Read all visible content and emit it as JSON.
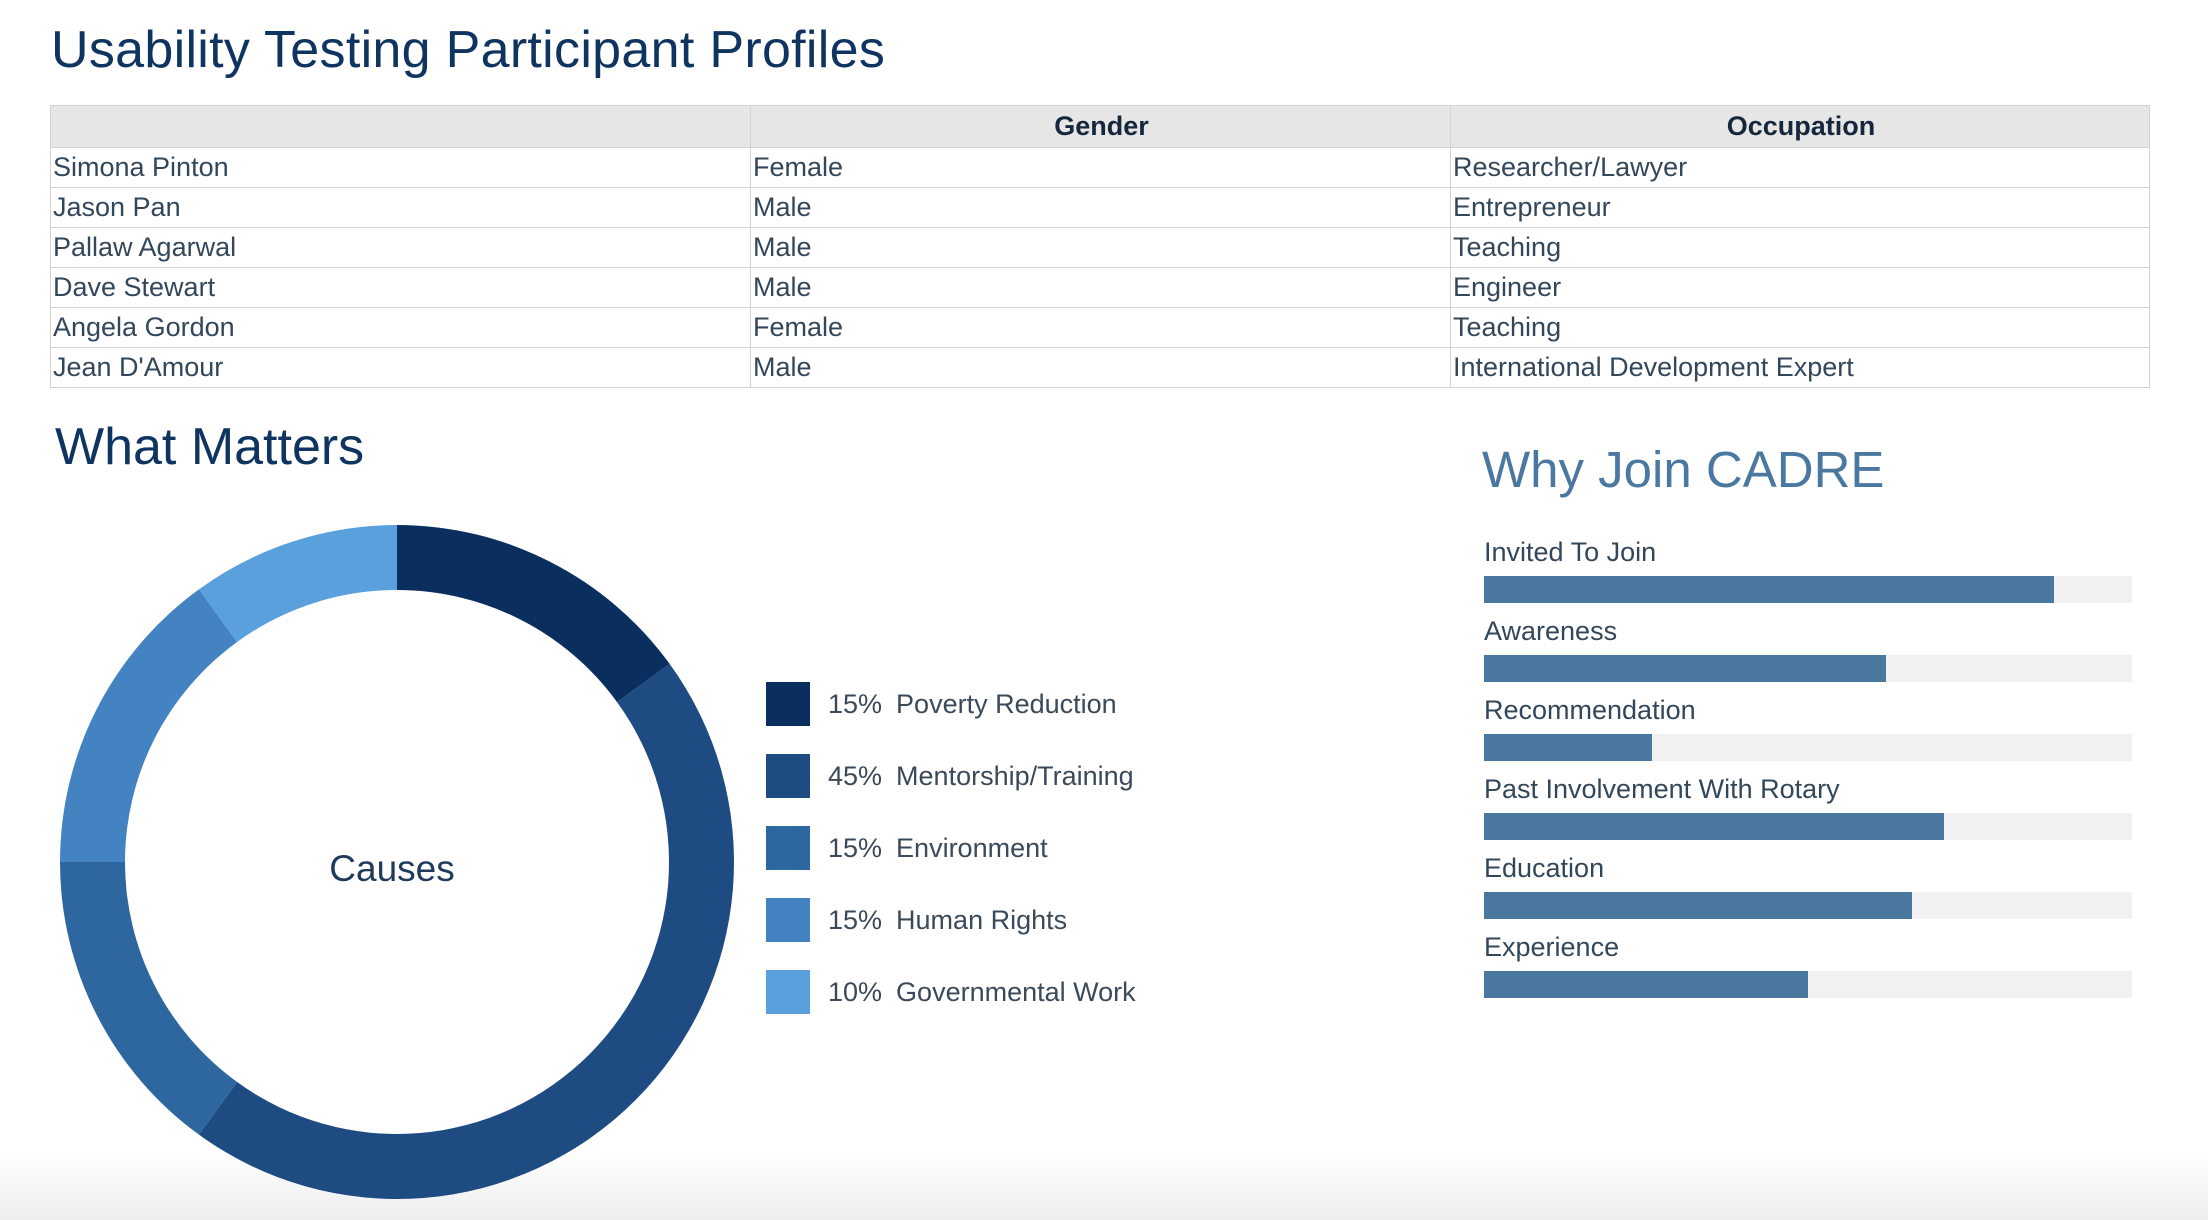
{
  "page_title": "Usability Testing Participant Profiles",
  "participants": {
    "headers": [
      "",
      "Gender",
      "Occupation"
    ],
    "rows": [
      [
        "Simona Pinton",
        "Female",
        "Researcher/Lawyer"
      ],
      [
        "Jason Pan",
        "Male",
        "Entrepreneur"
      ],
      [
        "Pallaw Agarwal",
        "Male",
        "Teaching"
      ],
      [
        "Dave Stewart",
        "Male",
        "Engineer"
      ],
      [
        "Angela Gordon",
        "Female",
        "Teaching"
      ],
      [
        "Jean D'Amour",
        "Male",
        "International Development Expert"
      ]
    ]
  },
  "chart_data": [
    {
      "type": "pie",
      "title": "What Matters",
      "center_label": "Causes",
      "slices": [
        {
          "label": "Poverty Reduction",
          "pct_text": "15%",
          "value": 15,
          "color": "#0a2f5f"
        },
        {
          "label": "Mentorship/Training",
          "pct_text": "45%",
          "value": 45,
          "color": "#1e4c82"
        },
        {
          "label": "Environment",
          "pct_text": "15%",
          "value": 15,
          "color": "#2e669f"
        },
        {
          "label": "Human Rights",
          "pct_text": "15%",
          "value": 15,
          "color": "#4483c2"
        },
        {
          "label": "Governmental Work",
          "pct_text": "10%",
          "value": 10,
          "color": "#5aa0dc"
        }
      ]
    },
    {
      "type": "bar",
      "orientation": "horizontal",
      "title": "Why Join CADRE",
      "xlim": [
        0,
        100
      ],
      "bar_color": "#4a779e",
      "track_color": "#f1f1f2",
      "categories": [
        "Invited To Join",
        "Awareness",
        "Recommendation",
        "Past Involvement With Rotary",
        "Education",
        "Experience"
      ],
      "values": [
        88,
        62,
        26,
        71,
        66,
        50
      ]
    }
  ]
}
